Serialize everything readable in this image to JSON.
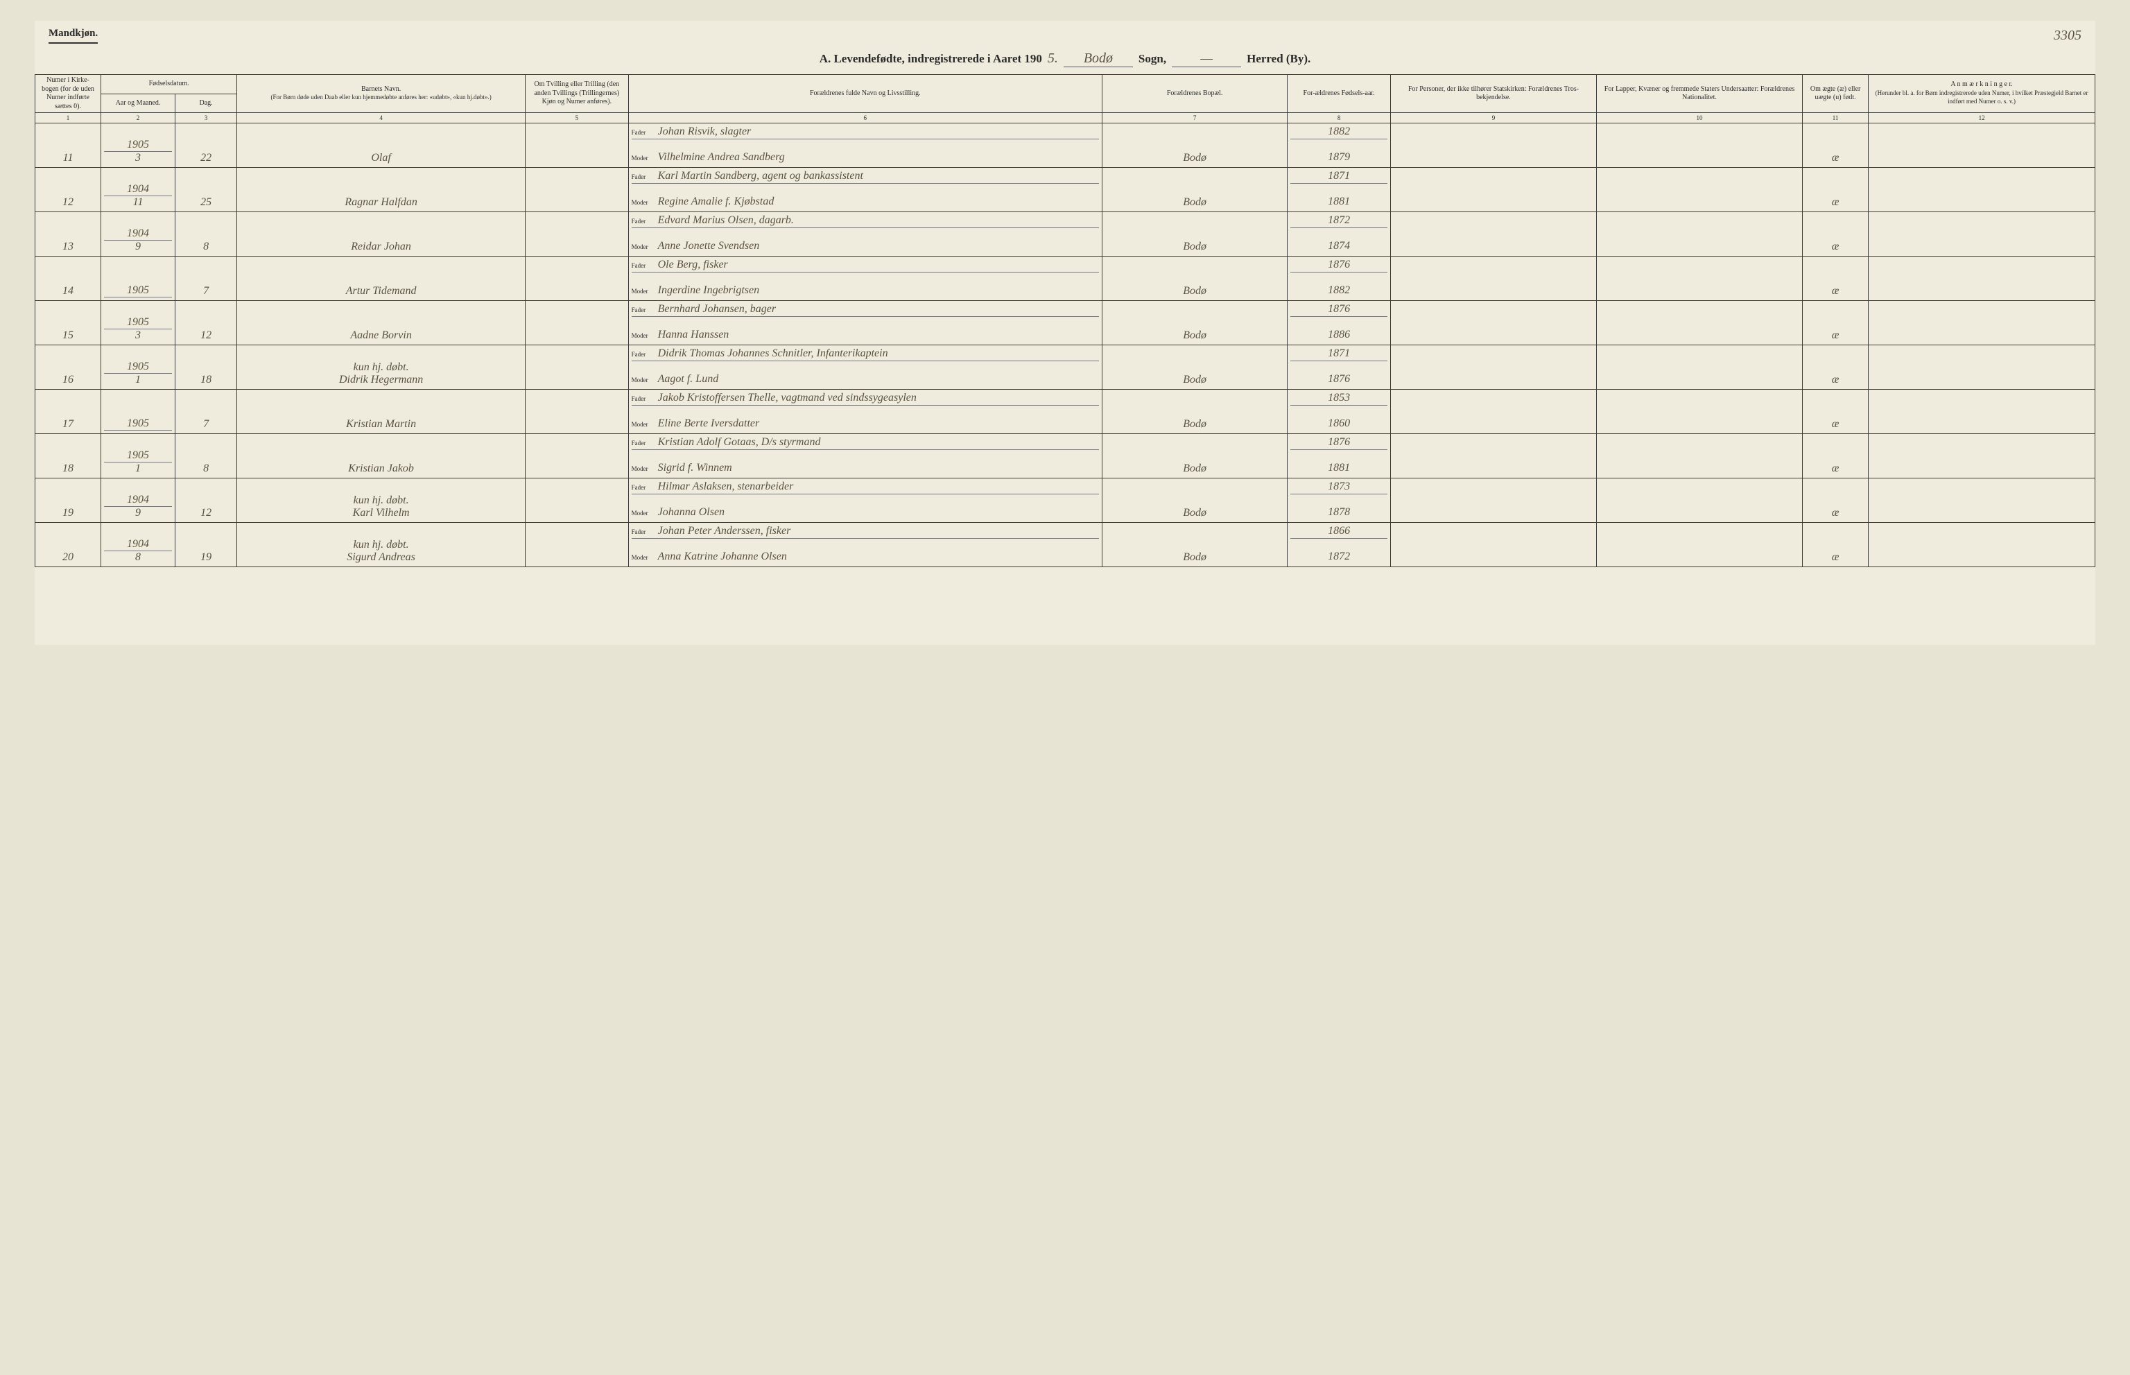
{
  "header": {
    "gender_label": "Mandkjøn.",
    "page_number_hand": "3305",
    "title_prefix": "A.  Levendefødte, indregistrerede i Aaret 190",
    "year_hand": "5.",
    "parish_hand": "Bodø",
    "sogn_label": "Sogn,",
    "dash_hand": "—",
    "herred_label": "Herred (By)."
  },
  "columns": {
    "c1": "Numer i Kirke-bogen (for de uden Numer indførte sættes 0).",
    "c2_top": "Fødselsdatum.",
    "c2a": "Aar og Maaned.",
    "c2b": "Dag.",
    "c4_top": "Barnets Navn.",
    "c4_sub": "(For Børn døde uden Daab eller kun hjemmedøbte anføres her: «udøbt», «kun hj.døbt».)",
    "c5": "Om Tvilling eller Trilling (den anden Tvillings (Trillingernes) Kjøn og Numer anføres).",
    "c6": "Forældrenes fulde Navn og Livsstilling.",
    "c7": "Forældrenes Bopæl.",
    "c8": "For-ældrenes Fødsels-aar.",
    "c9": "For Personer, der ikke tilhører Statskirken: Forældrenes Tros-bekjendelse.",
    "c10": "For Lapper, Kvæner og fremmede Staters Undersaatter: Forældrenes Nationalitet.",
    "c11": "Om ægte (æ) eller uægte (u) født.",
    "c12_top": "A n m æ r k n i n g e r.",
    "c12_sub": "(Herunder bl. a. for Børn indregistrerede uden Numer, i hvilket Præstegjeld Barnet er indført med Numer o. s. v.)",
    "nums": [
      "1",
      "2",
      "3",
      "4",
      "5",
      "6",
      "7",
      "8",
      "9",
      "10",
      "11",
      "12"
    ],
    "fader": "Fader",
    "moder": "Moder"
  },
  "colors": {
    "page_bg": "#f0ecdd",
    "ink": "#2a2a2a",
    "hand_ink": "#5a5240",
    "rule": "#3a3a3a"
  },
  "rows": [
    {
      "num": "11",
      "year": "1905",
      "month": "3",
      "day": "22",
      "child_note": "",
      "child": "Olaf",
      "father": "Johan Risvik, slagter",
      "mother": "Vilhelmine Andrea Sandberg",
      "residence": "Bodø",
      "fy": "1882",
      "my": "1879",
      "legit": "æ"
    },
    {
      "num": "12",
      "year": "1904",
      "month": "11",
      "day": "25",
      "child_note": "",
      "child": "Ragnar Halfdan",
      "father": "Karl Martin Sandberg, agent og bankassistent",
      "mother": "Regine Amalie f. Kjøbstad",
      "residence": "Bodø",
      "fy": "1871",
      "my": "1881",
      "legit": "æ"
    },
    {
      "num": "13",
      "year": "1904",
      "month": "9",
      "day": "8",
      "child_note": "",
      "child": "Reidar Johan",
      "father": "Edvard Marius Olsen, dagarb.",
      "mother": "Anne Jonette Svendsen",
      "residence": "Bodø",
      "fy": "1872",
      "my": "1874",
      "legit": "æ"
    },
    {
      "num": "14",
      "year": "1905",
      "month": "",
      "day": "7",
      "child_note": "",
      "child": "Artur Tidemand",
      "father": "Ole Berg, fisker",
      "mother": "Ingerdine Ingebrigtsen",
      "residence": "Bodø",
      "fy": "1876",
      "my": "1882",
      "legit": "æ"
    },
    {
      "num": "15",
      "year": "1905",
      "month": "3",
      "day": "12",
      "child_note": "",
      "child": "Aadne Borvin",
      "father": "Bernhard Johansen, bager",
      "mother": "Hanna Hanssen",
      "residence": "Bodø",
      "fy": "1876",
      "my": "1886",
      "legit": "æ"
    },
    {
      "num": "16",
      "year": "1905",
      "month": "1",
      "day": "18",
      "child_note": "kun hj. døbt.",
      "child": "Didrik Hegermann",
      "father": "Didrik Thomas Johannes Schnitler, Infanterikaptein",
      "mother": "Aagot f. Lund",
      "residence": "Bodø",
      "fy": "1871",
      "my": "1876",
      "legit": "æ"
    },
    {
      "num": "17",
      "year": "1905",
      "month": "",
      "day": "7",
      "child_note": "",
      "child": "Kristian Martin",
      "father": "Jakob Kristoffersen Thelle, vagtmand ved sindssygeasylen",
      "mother": "Eline Berte Iversdatter",
      "residence": "Bodø",
      "fy": "1853",
      "my": "1860",
      "legit": "æ"
    },
    {
      "num": "18",
      "year": "1905",
      "month": "1",
      "day": "8",
      "child_note": "",
      "child": "Kristian Jakob",
      "father": "Kristian Adolf Gotaas, D/s styrmand",
      "mother": "Sigrid f. Winnem",
      "residence": "Bodø",
      "fy": "1876",
      "my": "1881",
      "legit": "æ"
    },
    {
      "num": "19",
      "year": "1904",
      "month": "9",
      "day": "12",
      "child_note": "kun hj. døbt.",
      "child": "Karl Vilhelm",
      "father": "Hilmar Aslaksen, stenarbeider",
      "mother": "Johanna Olsen",
      "residence": "Bodø",
      "fy": "1873",
      "my": "1878",
      "legit": "æ"
    },
    {
      "num": "20",
      "year": "1904",
      "month": "8",
      "day": "19",
      "child_note": "kun hj. døbt.",
      "child": "Sigurd Andreas",
      "father": "Johan Peter Anderssen, fisker",
      "mother": "Anna Katrine Johanne Olsen",
      "residence": "Bodø",
      "fy": "1866",
      "my": "1872",
      "legit": "æ"
    }
  ]
}
